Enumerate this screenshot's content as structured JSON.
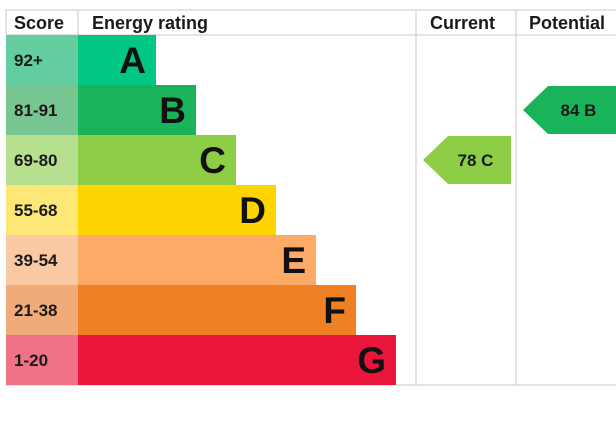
{
  "headers": {
    "score": "Score",
    "energy_rating": "Energy rating",
    "current": "Current",
    "potential": "Potential"
  },
  "chart_data": {
    "type": "bar",
    "bands": [
      {
        "score": "92+",
        "letter": "A",
        "bar_color": "#00c781",
        "score_bg": "#64cda0"
      },
      {
        "score": "81-91",
        "letter": "B",
        "bar_color": "#19b459",
        "score_bg": "#77c692"
      },
      {
        "score": "69-80",
        "letter": "C",
        "bar_color": "#8dce46",
        "score_bg": "#b6df8e"
      },
      {
        "score": "55-68",
        "letter": "D",
        "bar_color": "#ffd500",
        "score_bg": "#fde776"
      },
      {
        "score": "39-54",
        "letter": "E",
        "bar_color": "#fcaa65",
        "score_bg": "#f8c9a2"
      },
      {
        "score": "21-38",
        "letter": "F",
        "bar_color": "#ef8023",
        "score_bg": "#f1ab79"
      },
      {
        "score": "1-20",
        "letter": "G",
        "bar_color": "#e9153b",
        "score_bg": "#ef7286"
      }
    ],
    "current": {
      "value": 78,
      "letter": "C",
      "label": "78  C",
      "color": "#8dce46"
    },
    "potential": {
      "value": 84,
      "letter": "B",
      "label": "84  B",
      "color": "#19b459"
    }
  }
}
